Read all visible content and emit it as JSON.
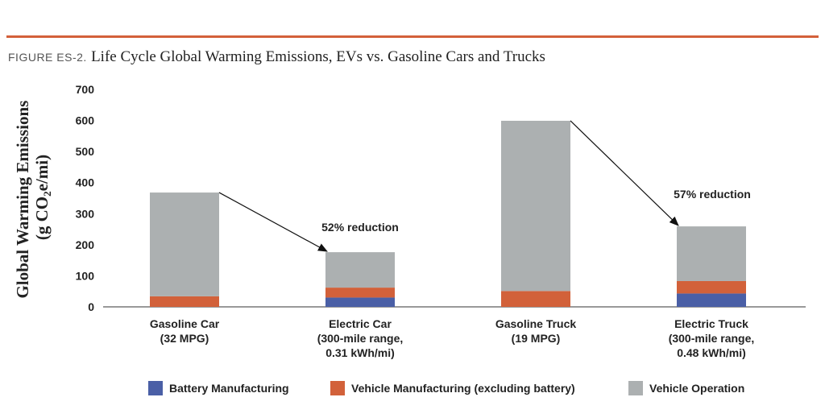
{
  "figure": {
    "label": "FIGURE ES-2.",
    "title": "Life Cycle Global Warming Emissions, EVs vs. Gasoline Cars and Trucks"
  },
  "chart_data": {
    "type": "bar",
    "stacked": true,
    "ylabel_line1": "Global Warming Emissions",
    "ylabel_line2_prefix": "(g CO",
    "ylabel_line2_sub": "2",
    "ylabel_line2_suffix": "e/mi)",
    "ylim": [
      0,
      700
    ],
    "yticks": [
      0,
      100,
      200,
      300,
      400,
      500,
      600,
      700
    ],
    "grid": false,
    "legend_position": "bottom",
    "categories": [
      [
        "Gasoline Car",
        "(32 MPG)"
      ],
      [
        "Electric Car",
        "(300-mile range,",
        "0.31 kWh/mi)"
      ],
      [
        "Gasoline Truck",
        "(19 MPG)"
      ],
      [
        "Electric Truck",
        "(300-mile range,",
        "0.48 kWh/mi)"
      ]
    ],
    "series": [
      {
        "name": "Battery Manufacturing",
        "color": "#4a5fa6",
        "values": [
          0,
          30,
          0,
          43
        ]
      },
      {
        "name": "Vehicle Manufacturing (excluding battery)",
        "color": "#d2613a",
        "values": [
          34,
          32,
          51,
          40
        ]
      },
      {
        "name": "Vehicle Operation",
        "color": "#acb0b1",
        "values": [
          334,
          114,
          548,
          176
        ]
      }
    ],
    "annotations": [
      {
        "text": "52% reduction",
        "from": 0,
        "to": 1
      },
      {
        "text": "57% reduction",
        "from": 2,
        "to": 3
      }
    ]
  }
}
